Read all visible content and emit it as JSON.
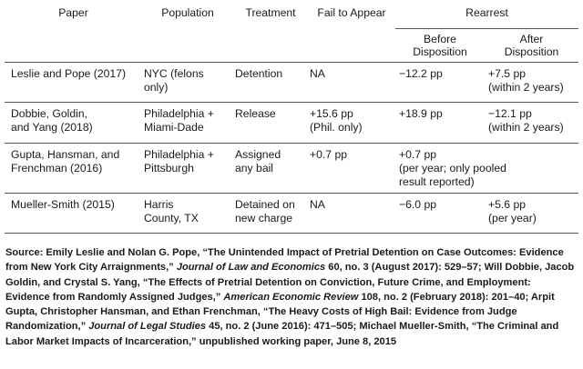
{
  "headers": {
    "paper": "Paper",
    "population": "Population",
    "treatment": "Treatment",
    "fail_to_appear": "Fail to Appear",
    "rearrest": "Rearrest",
    "before": [
      "Before",
      "Disposition"
    ],
    "after": [
      "After",
      "Disposition"
    ]
  },
  "rows": [
    {
      "paper": [
        "Leslie and Pope (2017)"
      ],
      "population": [
        "NYC (felons",
        "only)"
      ],
      "treatment": [
        "Detention"
      ],
      "fta": [
        "NA"
      ],
      "before": [
        "−12.2 pp"
      ],
      "after": [
        "+7.5 pp",
        "(within 2 years)"
      ]
    },
    {
      "paper": [
        "Dobbie, Goldin,",
        "and Yang (2018)"
      ],
      "population": [
        "Philadelphia +",
        "Miami-Dade"
      ],
      "treatment": [
        "Release"
      ],
      "fta": [
        "+15.6 pp",
        "(Phil. only)"
      ],
      "before": [
        "+18.9 pp"
      ],
      "after": [
        "−12.1 pp",
        "(within 2 years)"
      ]
    },
    {
      "paper": [
        "Gupta, Hansman, and",
        "Frenchman (2016)"
      ],
      "population": [
        "Philadelphia +",
        "Pittsburgh"
      ],
      "treatment": [
        "Assigned",
        "any bail"
      ],
      "fta": [
        "+0.7 pp"
      ],
      "before_merged": [
        "+0.7 pp",
        "(per year; only pooled",
        "result reported)"
      ]
    },
    {
      "paper": [
        "Mueller-Smith (2015)"
      ],
      "population": [
        "Harris",
        "County, TX"
      ],
      "treatment": [
        "Detained on",
        "new charge"
      ],
      "fta": [
        "NA"
      ],
      "before": [
        "−6.0 pp"
      ],
      "after": [
        "+5.6 pp",
        "(per year)"
      ]
    }
  ],
  "source": {
    "s1": "Source: Emily Leslie and Nolan G. Pope, “The Unintended Impact of Pretrial Detention on Case Outcomes: Evidence from New York City Arraignments,” ",
    "s1_journal": "Journal of Law and Economics",
    "s2": " 60, no. 3 (August 2017): 529–57; Will Dobbie, Jacob Goldin, and Crystal S. Yang, “The Effects of Pretrial Detention on Conviction, Future Crime, and Employment: Evidence from Randomly Assigned Judges,” ",
    "s2_journal": "American Economic Review",
    "s3": " 108, no. 2 (February 2018): 201–40; Arpit Gupta, Christopher Hansman, and Ethan Frenchman, “The Heavy Costs of High Bail: Evidence from Judge Randomization,” ",
    "s3_journal": "Journal of Legal Studies",
    "s4": " 45, no. 2 (June 2016): 471–505; Michael Mueller-Smith, “The Criminal and Labor Market Impacts of Incarceration,” unpublished working paper, June 8, 2015"
  }
}
